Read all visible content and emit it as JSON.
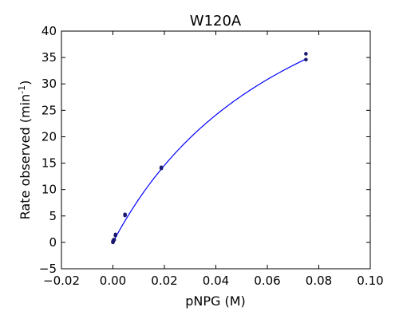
{
  "chart_data": {
    "type": "scatter",
    "title": "W120A",
    "xlabel": "pNPG (M)",
    "ylabel": "Rate observed (min",
    "ylabel_sup": "-1",
    "ylabel_end": ")",
    "xlim": [
      -0.02,
      0.1
    ],
    "ylim": [
      -5,
      40
    ],
    "x_ticks": [
      -0.02,
      0.0,
      0.02,
      0.04,
      0.06,
      0.08,
      0.1
    ],
    "x_tick_labels": [
      "−0.02",
      "0.00",
      "0.02",
      "0.04",
      "0.06",
      "0.08",
      "0.10"
    ],
    "y_ticks": [
      -5,
      0,
      5,
      10,
      15,
      20,
      25,
      30,
      35,
      40
    ],
    "y_tick_labels": [
      "−5",
      "0",
      "5",
      "10",
      "15",
      "20",
      "25",
      "30",
      "35",
      "40"
    ],
    "grid": false,
    "series": [
      {
        "kind": "points",
        "color": "#191970",
        "x": [
          0.0,
          0.0,
          0.0001,
          0.0001,
          0.0002,
          0.0003,
          0.0005,
          0.001,
          0.001,
          0.0047,
          0.0047,
          0.0188,
          0.0188,
          0.075,
          0.075
        ],
        "y": [
          0.0,
          0.1,
          0.2,
          0.3,
          0.3,
          0.5,
          0.5,
          1.3,
          1.5,
          5.1,
          5.3,
          14.0,
          14.2,
          34.6,
          35.7
        ]
      },
      {
        "kind": "fit",
        "color": "#0000ff",
        "model": "michaelis-menten",
        "vmax": 69.8,
        "km": 0.0758,
        "x_range": [
          0.0,
          0.075
        ]
      }
    ]
  }
}
